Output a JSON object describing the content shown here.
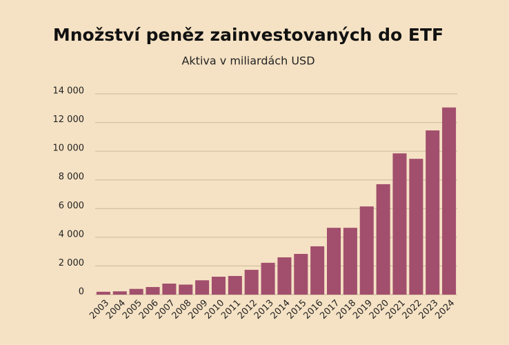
{
  "chart_data": {
    "type": "bar",
    "title": "Množství peněz zainvestovaných do ETF",
    "subtitle": "Aktiva v miliardách USD",
    "categories": [
      "2003",
      "2004",
      "2005",
      "2006",
      "2007",
      "2008",
      "2009",
      "2010",
      "2011",
      "2012",
      "2013",
      "2014",
      "2015",
      "2016",
      "2017",
      "2018",
      "2019",
      "2020",
      "2021",
      "2022",
      "2023",
      "2024"
    ],
    "values": [
      200,
      230,
      400,
      530,
      770,
      700,
      1000,
      1250,
      1300,
      1730,
      2220,
      2600,
      2840,
      3370,
      4660,
      4660,
      6150,
      7700,
      9850,
      9470,
      11450,
      13050
    ],
    "color": "#a24f6d",
    "ylim": [
      0,
      14000
    ],
    "yticks": [
      0,
      {
        "value": 2000,
        "label": "2 000"
      },
      {
        "value": 4000,
        "label": "4 000"
      },
      {
        "value": 6000,
        "label": "6 000"
      },
      {
        "value": 8000,
        "label": "8 000"
      },
      {
        "value": 10000,
        "label": "10 000"
      },
      {
        "value": 12000,
        "label": "12 000"
      },
      {
        "value": 14000,
        "label": "14 000"
      }
    ],
    "grid": true
  }
}
